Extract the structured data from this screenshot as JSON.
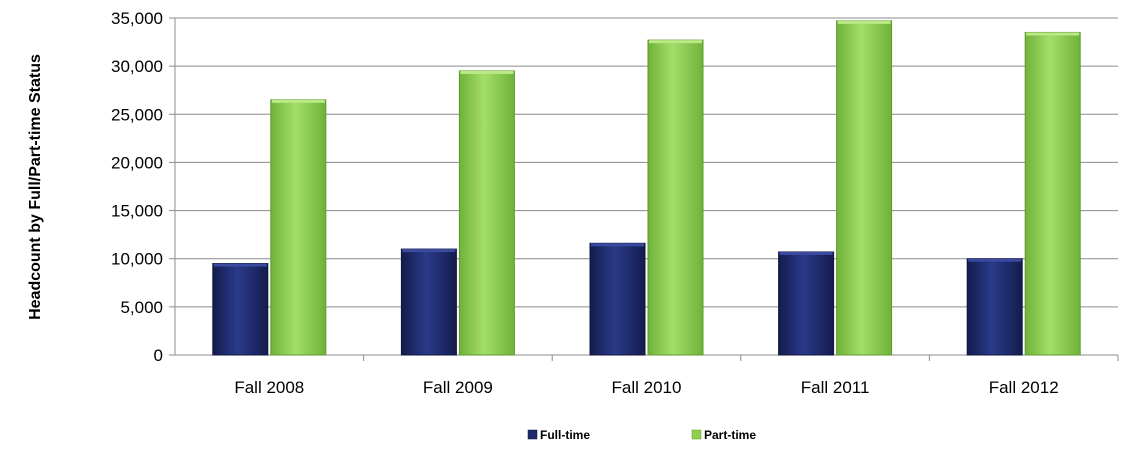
{
  "chart_data": {
    "type": "bar",
    "categories": [
      "Fall 2008",
      "Fall 2009",
      "Fall 2010",
      "Fall 2011",
      "Fall 2012"
    ],
    "series": [
      {
        "name": "Full-time",
        "values": [
          9500,
          11000,
          11600,
          10700,
          10000
        ],
        "color": "#1f2a6b"
      },
      {
        "name": "Part-time",
        "values": [
          26500,
          29500,
          32700,
          34700,
          33500
        ],
        "color": "#8fd14f"
      }
    ],
    "ylabel": "Headcount by Full/Part-time Status",
    "xlabel": "",
    "ylim": [
      0,
      35000
    ],
    "yticks": [
      0,
      5000,
      10000,
      15000,
      20000,
      25000,
      30000,
      35000
    ],
    "ytick_labels": [
      "0",
      "5,000",
      "10,000",
      "15,000",
      "20,000",
      "25,000",
      "30,000",
      "35,000"
    ],
    "grid": true,
    "legend_position": "bottom"
  }
}
